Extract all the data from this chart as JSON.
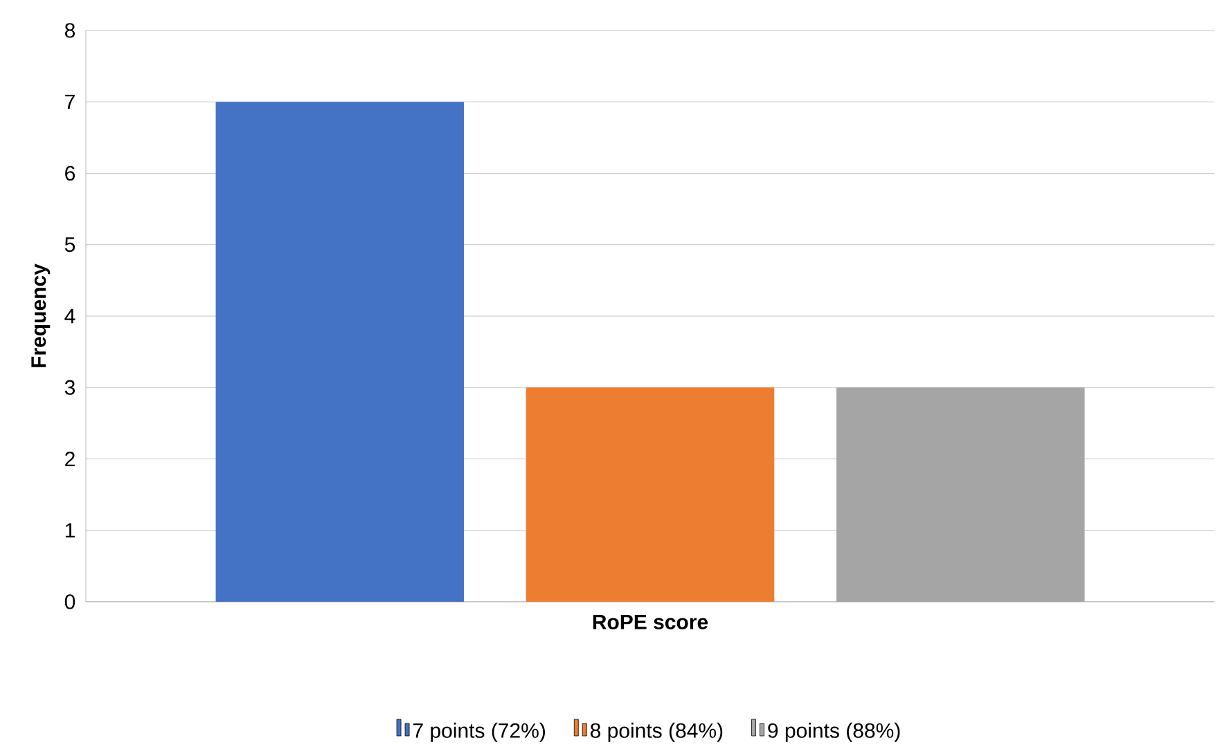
{
  "chart_data": {
    "type": "bar",
    "ylabel": "Frequency",
    "categories": [
      "RoPE score"
    ],
    "series": [
      {
        "name": "7 points (72%)",
        "color": "#4472c4",
        "values": [
          7
        ]
      },
      {
        "name": "8 points (84%)",
        "color": "#ed7d31",
        "values": [
          3
        ]
      },
      {
        "name": "9 points (88%)",
        "color": "#a5a5a5",
        "values": [
          3
        ]
      }
    ],
    "ylim": [
      0,
      8
    ],
    "yticks": [
      0,
      1,
      2,
      3,
      4,
      5,
      6,
      7,
      8
    ],
    "grid": "y",
    "legend": "bottom"
  }
}
